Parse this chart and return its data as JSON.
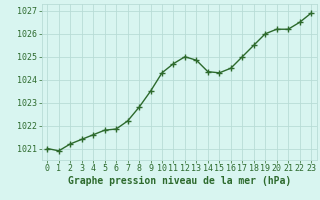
{
  "x": [
    0,
    1,
    2,
    3,
    4,
    5,
    6,
    7,
    8,
    9,
    10,
    11,
    12,
    13,
    14,
    15,
    16,
    17,
    18,
    19,
    20,
    21,
    22,
    23
  ],
  "y": [
    1021.0,
    1020.9,
    1021.2,
    1021.4,
    1021.6,
    1021.8,
    1021.85,
    1022.2,
    1022.8,
    1023.5,
    1024.3,
    1024.7,
    1025.0,
    1024.85,
    1024.35,
    1024.3,
    1024.5,
    1025.0,
    1025.5,
    1026.0,
    1026.2,
    1026.2,
    1026.5,
    1026.9
  ],
  "line_color": "#2d6a2d",
  "marker_color": "#2d6a2d",
  "bg_color": "#d8f5f0",
  "grid_color": "#b8dcd6",
  "title": "Graphe pression niveau de la mer (hPa)",
  "ylim": [
    1020.5,
    1027.3
  ],
  "xlim": [
    -0.5,
    23.5
  ],
  "yticks": [
    1021,
    1022,
    1023,
    1024,
    1025,
    1026,
    1027
  ],
  "xticks": [
    0,
    1,
    2,
    3,
    4,
    5,
    6,
    7,
    8,
    9,
    10,
    11,
    12,
    13,
    14,
    15,
    16,
    17,
    18,
    19,
    20,
    21,
    22,
    23
  ],
  "title_fontsize": 7.0,
  "tick_fontsize": 6.0,
  "line_width": 1.0,
  "marker_size": 2.5
}
